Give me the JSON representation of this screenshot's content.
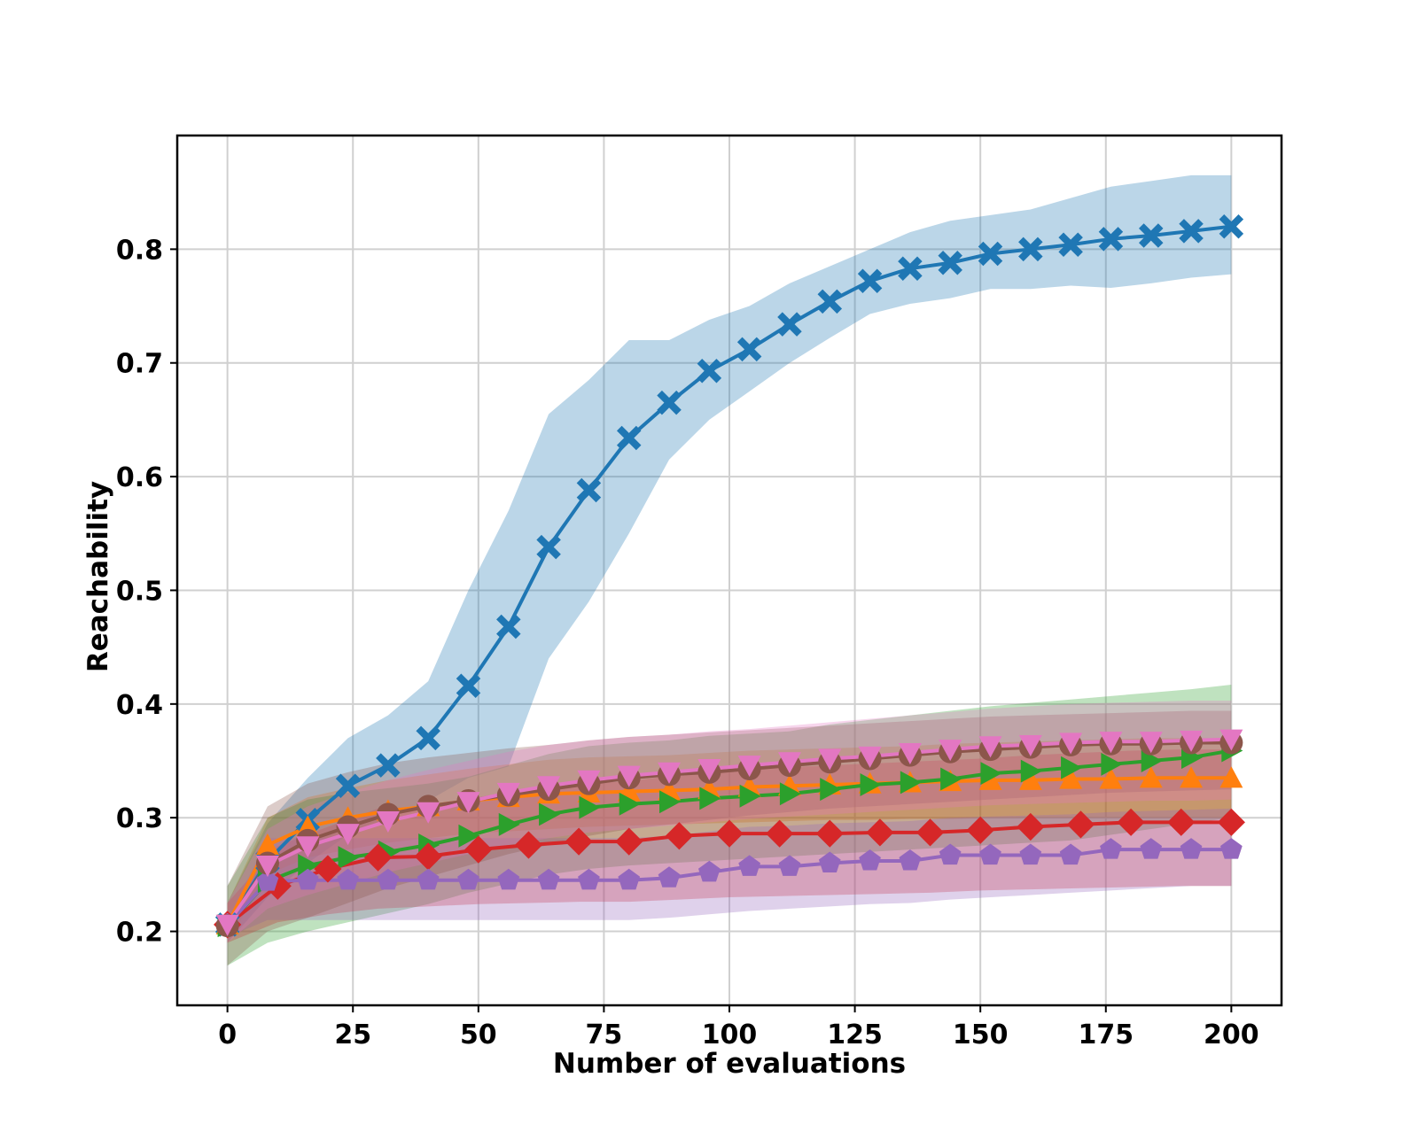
{
  "chart_data": {
    "type": "line",
    "title": "",
    "xlabel": "Number of evaluations",
    "ylabel": "Reachability",
    "xlim": [
      -10,
      210
    ],
    "ylim": [
      0.135,
      0.9
    ],
    "xticks": [
      0,
      25,
      50,
      75,
      100,
      125,
      150,
      175,
      200
    ],
    "yticks": [
      0.2,
      0.3,
      0.4,
      0.5,
      0.6,
      0.7,
      0.8
    ],
    "grid": true,
    "legend": "none",
    "series": [
      {
        "name": "blue",
        "color": "#1f77b4",
        "marker": "X",
        "x": [
          0,
          8,
          16,
          24,
          32,
          40,
          48,
          56,
          64,
          72,
          80,
          88,
          96,
          104,
          112,
          120,
          128,
          136,
          144,
          152,
          160,
          168,
          176,
          184,
          192,
          200
        ],
        "y": [
          0.206,
          0.262,
          0.298,
          0.328,
          0.346,
          0.37,
          0.416,
          0.468,
          0.538,
          0.588,
          0.634,
          0.665,
          0.693,
          0.712,
          0.734,
          0.754,
          0.772,
          0.783,
          0.788,
          0.796,
          0.8,
          0.804,
          0.809,
          0.812,
          0.816,
          0.82
        ],
        "lower": [
          0.19,
          0.23,
          0.26,
          0.285,
          0.3,
          0.315,
          0.335,
          0.345,
          0.44,
          0.49,
          0.55,
          0.615,
          0.65,
          0.675,
          0.7,
          0.722,
          0.743,
          0.752,
          0.757,
          0.765,
          0.765,
          0.768,
          0.766,
          0.77,
          0.775,
          0.778
        ],
        "upper": [
          0.225,
          0.295,
          0.335,
          0.37,
          0.39,
          0.42,
          0.5,
          0.57,
          0.655,
          0.685,
          0.72,
          0.72,
          0.738,
          0.75,
          0.77,
          0.785,
          0.8,
          0.815,
          0.825,
          0.83,
          0.835,
          0.845,
          0.855,
          0.86,
          0.865,
          0.865
        ]
      },
      {
        "name": "orange",
        "color": "#ff7f0e",
        "marker": "^",
        "x": [
          0,
          8,
          16,
          24,
          32,
          40,
          48,
          56,
          64,
          72,
          80,
          88,
          96,
          104,
          112,
          120,
          128,
          136,
          144,
          152,
          160,
          168,
          176,
          184,
          192,
          200
        ],
        "y": [
          0.206,
          0.276,
          0.292,
          0.3,
          0.306,
          0.31,
          0.315,
          0.318,
          0.321,
          0.322,
          0.323,
          0.324,
          0.325,
          0.327,
          0.328,
          0.329,
          0.33,
          0.331,
          0.332,
          0.333,
          0.333,
          0.334,
          0.334,
          0.335,
          0.335,
          0.335
        ],
        "lower": [
          0.19,
          0.25,
          0.265,
          0.272,
          0.278,
          0.282,
          0.286,
          0.288,
          0.29,
          0.292,
          0.293,
          0.294,
          0.295,
          0.296,
          0.297,
          0.298,
          0.298,
          0.299,
          0.299,
          0.3,
          0.3,
          0.3,
          0.3,
          0.3,
          0.3,
          0.3
        ],
        "upper": [
          0.225,
          0.3,
          0.318,
          0.326,
          0.333,
          0.338,
          0.343,
          0.347,
          0.351,
          0.353,
          0.354,
          0.355,
          0.357,
          0.359,
          0.36,
          0.361,
          0.362,
          0.363,
          0.365,
          0.366,
          0.367,
          0.368,
          0.369,
          0.37,
          0.37,
          0.37
        ]
      },
      {
        "name": "green",
        "color": "#2ca02c",
        "marker": ">",
        "x": [
          0,
          8,
          16,
          24,
          32,
          40,
          48,
          56,
          64,
          72,
          80,
          88,
          96,
          104,
          112,
          120,
          128,
          136,
          144,
          152,
          160,
          168,
          176,
          184,
          192,
          200
        ],
        "y": [
          0.205,
          0.244,
          0.258,
          0.265,
          0.27,
          0.276,
          0.284,
          0.294,
          0.303,
          0.309,
          0.312,
          0.314,
          0.317,
          0.319,
          0.321,
          0.325,
          0.329,
          0.331,
          0.334,
          0.339,
          0.341,
          0.344,
          0.347,
          0.35,
          0.353,
          0.359
        ],
        "lower": [
          0.17,
          0.19,
          0.2,
          0.208,
          0.216,
          0.224,
          0.234,
          0.242,
          0.25,
          0.255,
          0.258,
          0.26,
          0.262,
          0.264,
          0.266,
          0.268,
          0.27,
          0.272,
          0.274,
          0.276,
          0.278,
          0.28,
          0.285,
          0.29,
          0.295,
          0.3
        ],
        "upper": [
          0.24,
          0.3,
          0.316,
          0.322,
          0.326,
          0.33,
          0.336,
          0.346,
          0.356,
          0.363,
          0.366,
          0.368,
          0.372,
          0.374,
          0.376,
          0.382,
          0.386,
          0.39,
          0.394,
          0.398,
          0.401,
          0.404,
          0.407,
          0.41,
          0.413,
          0.417
        ]
      },
      {
        "name": "red",
        "color": "#d62728",
        "marker": "D",
        "x": [
          0,
          10,
          20,
          30,
          40,
          50,
          60,
          70,
          80,
          90,
          100,
          110,
          120,
          130,
          140,
          150,
          160,
          170,
          180,
          190,
          200
        ],
        "y": [
          0.206,
          0.24,
          0.255,
          0.265,
          0.266,
          0.272,
          0.276,
          0.279,
          0.279,
          0.284,
          0.286,
          0.286,
          0.286,
          0.287,
          0.287,
          0.289,
          0.292,
          0.294,
          0.296,
          0.296,
          0.296
        ],
        "lower": [
          0.19,
          0.208,
          0.215,
          0.22,
          0.222,
          0.224,
          0.225,
          0.226,
          0.226,
          0.228,
          0.23,
          0.231,
          0.232,
          0.233,
          0.234,
          0.236,
          0.237,
          0.238,
          0.239,
          0.24,
          0.24
        ],
        "upper": [
          0.225,
          0.275,
          0.292,
          0.308,
          0.31,
          0.318,
          0.326,
          0.33,
          0.332,
          0.338,
          0.342,
          0.344,
          0.346,
          0.348,
          0.35,
          0.352,
          0.355,
          0.357,
          0.359,
          0.36,
          0.36
        ]
      },
      {
        "name": "purple",
        "color": "#9467bd",
        "marker": "p",
        "x": [
          0,
          8,
          16,
          24,
          32,
          40,
          48,
          56,
          64,
          72,
          80,
          88,
          96,
          104,
          112,
          120,
          128,
          136,
          144,
          152,
          160,
          168,
          176,
          184,
          192,
          200
        ],
        "y": [
          0.206,
          0.244,
          0.245,
          0.245,
          0.245,
          0.245,
          0.245,
          0.245,
          0.245,
          0.245,
          0.245,
          0.247,
          0.252,
          0.257,
          0.257,
          0.26,
          0.262,
          0.262,
          0.267,
          0.267,
          0.267,
          0.267,
          0.272,
          0.272,
          0.272,
          0.272
        ],
        "lower": [
          0.195,
          0.21,
          0.21,
          0.21,
          0.21,
          0.21,
          0.21,
          0.21,
          0.21,
          0.21,
          0.21,
          0.212,
          0.215,
          0.218,
          0.22,
          0.222,
          0.224,
          0.225,
          0.228,
          0.23,
          0.232,
          0.234,
          0.236,
          0.238,
          0.24,
          0.24
        ],
        "upper": [
          0.21,
          0.282,
          0.282,
          0.282,
          0.282,
          0.282,
          0.282,
          0.282,
          0.282,
          0.282,
          0.282,
          0.284,
          0.288,
          0.292,
          0.293,
          0.295,
          0.296,
          0.297,
          0.3,
          0.301,
          0.302,
          0.303,
          0.305,
          0.306,
          0.307,
          0.308
        ]
      },
      {
        "name": "brown",
        "color": "#8c564b",
        "marker": "o",
        "x": [
          0,
          8,
          16,
          24,
          32,
          40,
          48,
          56,
          64,
          72,
          80,
          88,
          96,
          104,
          112,
          120,
          128,
          136,
          144,
          152,
          160,
          168,
          176,
          184,
          192,
          200
        ],
        "y": [
          0.205,
          0.26,
          0.28,
          0.292,
          0.303,
          0.31,
          0.315,
          0.32,
          0.325,
          0.33,
          0.335,
          0.338,
          0.34,
          0.343,
          0.346,
          0.349,
          0.352,
          0.355,
          0.358,
          0.36,
          0.362,
          0.364,
          0.365,
          0.365,
          0.366,
          0.366
        ],
        "lower": [
          0.17,
          0.2,
          0.212,
          0.225,
          0.238,
          0.248,
          0.258,
          0.268,
          0.276,
          0.284,
          0.29,
          0.294,
          0.298,
          0.302,
          0.305,
          0.308,
          0.31,
          0.312,
          0.314,
          0.316,
          0.318,
          0.32,
          0.322,
          0.323,
          0.324,
          0.325
        ],
        "upper": [
          0.24,
          0.31,
          0.33,
          0.34,
          0.348,
          0.353,
          0.357,
          0.361,
          0.364,
          0.368,
          0.371,
          0.373,
          0.375,
          0.377,
          0.379,
          0.381,
          0.383,
          0.385,
          0.387,
          0.389,
          0.39,
          0.391,
          0.392,
          0.393,
          0.394,
          0.394
        ]
      },
      {
        "name": "pink",
        "color": "#e377c2",
        "marker": "v",
        "x": [
          0,
          8,
          16,
          24,
          32,
          40,
          48,
          56,
          64,
          72,
          80,
          88,
          96,
          104,
          112,
          120,
          128,
          136,
          144,
          152,
          160,
          168,
          176,
          184,
          192,
          200
        ],
        "y": [
          0.206,
          0.258,
          0.275,
          0.286,
          0.297,
          0.305,
          0.314,
          0.322,
          0.328,
          0.333,
          0.337,
          0.34,
          0.343,
          0.346,
          0.349,
          0.352,
          0.354,
          0.357,
          0.36,
          0.363,
          0.364,
          0.366,
          0.367,
          0.367,
          0.368,
          0.369
        ],
        "lower": [
          0.19,
          0.22,
          0.232,
          0.242,
          0.252,
          0.26,
          0.268,
          0.276,
          0.282,
          0.287,
          0.29,
          0.293,
          0.296,
          0.299,
          0.301,
          0.303,
          0.305,
          0.307,
          0.309,
          0.311,
          0.312,
          0.313,
          0.314,
          0.315,
          0.315,
          0.316
        ],
        "upper": [
          0.225,
          0.29,
          0.31,
          0.322,
          0.333,
          0.342,
          0.35,
          0.358,
          0.364,
          0.368,
          0.371,
          0.373,
          0.376,
          0.378,
          0.381,
          0.384,
          0.387,
          0.39,
          0.393,
          0.396,
          0.398,
          0.4,
          0.401,
          0.402,
          0.403,
          0.403
        ]
      }
    ]
  }
}
